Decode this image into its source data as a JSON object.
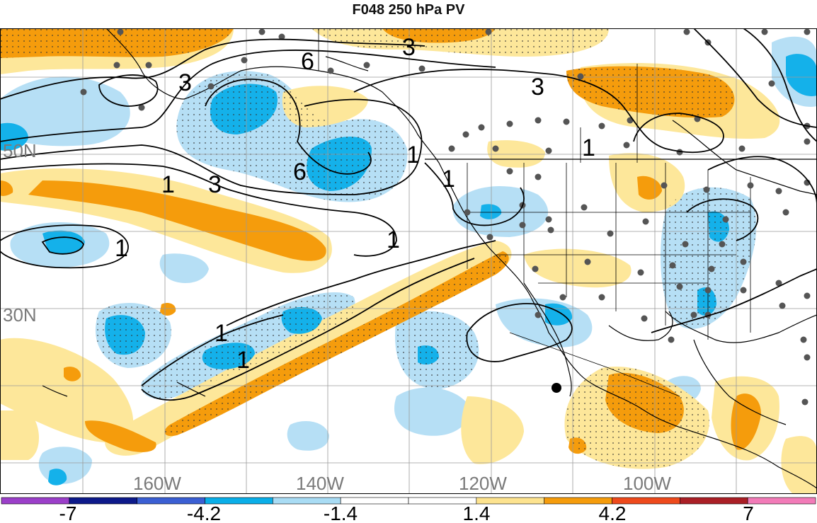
{
  "title": "F048 250 hPa PV",
  "longitude_labels": [
    "160W",
    "140W",
    "120W",
    "100W"
  ],
  "latitude_labels": [
    "50N",
    "30N"
  ],
  "contour_labels": [
    "3",
    "6",
    "3",
    "1",
    "3",
    "6",
    "3",
    "1",
    "1",
    "1",
    "1",
    "1",
    "1",
    "1"
  ],
  "colorbar": {
    "tick_labels": [
      "-7",
      "-4.2",
      "-1.4",
      "1.4",
      "4.2",
      "7"
    ],
    "colors": [
      "#9b3fc9",
      "#0d1a8a",
      "#3b5fd3",
      "#0aaee8",
      "#a9dcf4",
      "#ffffff",
      "#ffffff",
      "#fde38f",
      "#f59c0c",
      "#ee4a1c",
      "#aa1f26",
      "#f27bb8"
    ]
  },
  "palette": {
    "blue_strong": "#14b1ea",
    "blue_light": "#b6dff5",
    "orange_strong": "#f59c0c",
    "yellow_light": "#fde79a"
  }
}
